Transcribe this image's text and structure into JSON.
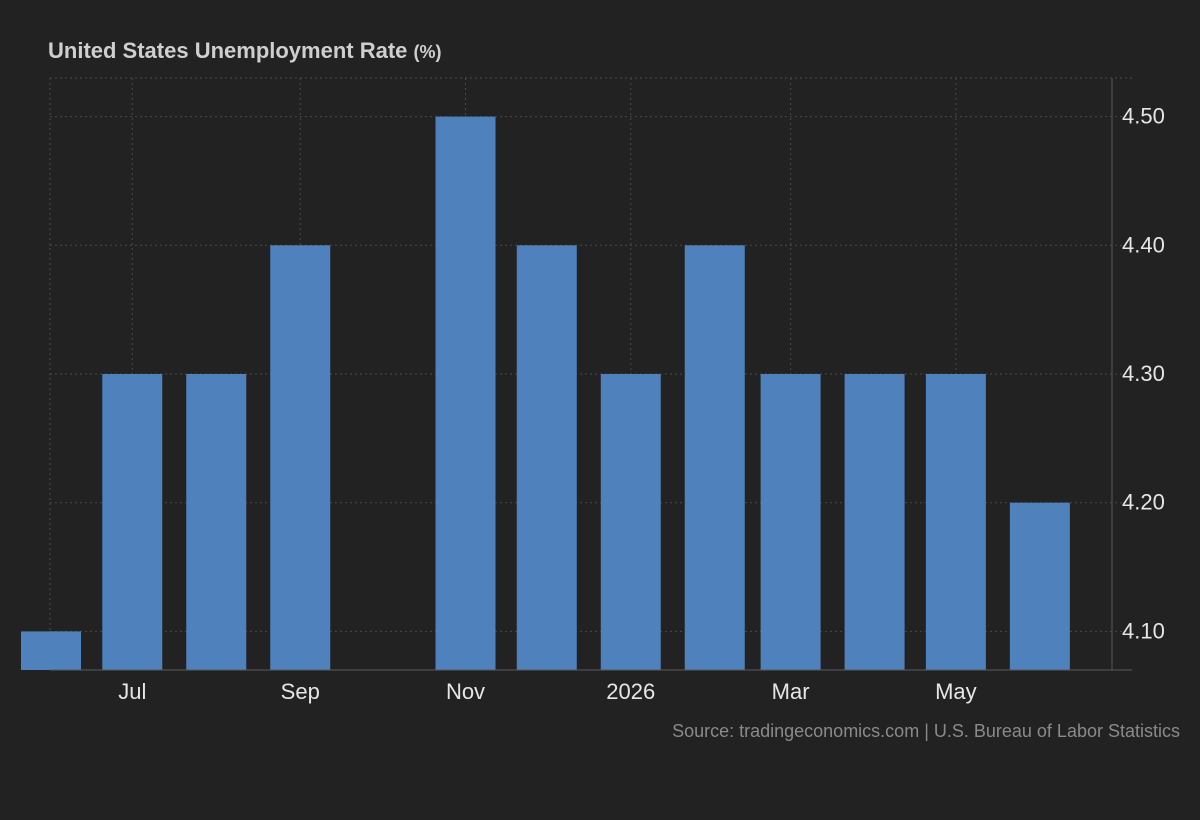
{
  "chart_data": {
    "type": "bar",
    "title": "United States Unemployment Rate",
    "unit": "(%)",
    "source": "Source: tradingeconomics.com | U.S. Bureau of Labor Statistics",
    "bars": [
      {
        "date": "2025-06",
        "value": 4.1
      },
      {
        "date": "2025-07",
        "value": 4.3
      },
      {
        "date": "2025-08",
        "value": 4.3
      },
      {
        "date": "2025-09",
        "value": 4.4
      },
      {
        "date": "2025-11",
        "value": 4.5
      },
      {
        "date": "2025-12",
        "value": 4.4
      },
      {
        "date": "2026-01",
        "value": 4.3
      },
      {
        "date": "2026-02",
        "value": 4.4
      },
      {
        "date": "2026-03",
        "value": 4.3
      },
      {
        "date": "2026-04",
        "value": 4.3
      },
      {
        "date": "2026-05",
        "value": 4.3
      },
      {
        "date": "2026-06",
        "value": 4.2
      }
    ],
    "x_ticks": [
      {
        "date": "2025-07",
        "label": "Jul"
      },
      {
        "date": "2025-09",
        "label": "Sep"
      },
      {
        "date": "2025-11",
        "label": "Nov"
      },
      {
        "date": "2026-01",
        "label": "2026"
      },
      {
        "date": "2026-03",
        "label": "Mar"
      },
      {
        "date": "2026-05",
        "label": "May"
      }
    ],
    "y_ticks": [
      "4.10",
      "4.20",
      "4.30",
      "4.40",
      "4.50"
    ],
    "ylim": [
      4.07,
      4.53
    ],
    "y_axis_side": "right",
    "grid": true,
    "colors": {
      "bar": "#4f81bd",
      "background": "#222222",
      "grid": "#4a4a4a"
    }
  }
}
